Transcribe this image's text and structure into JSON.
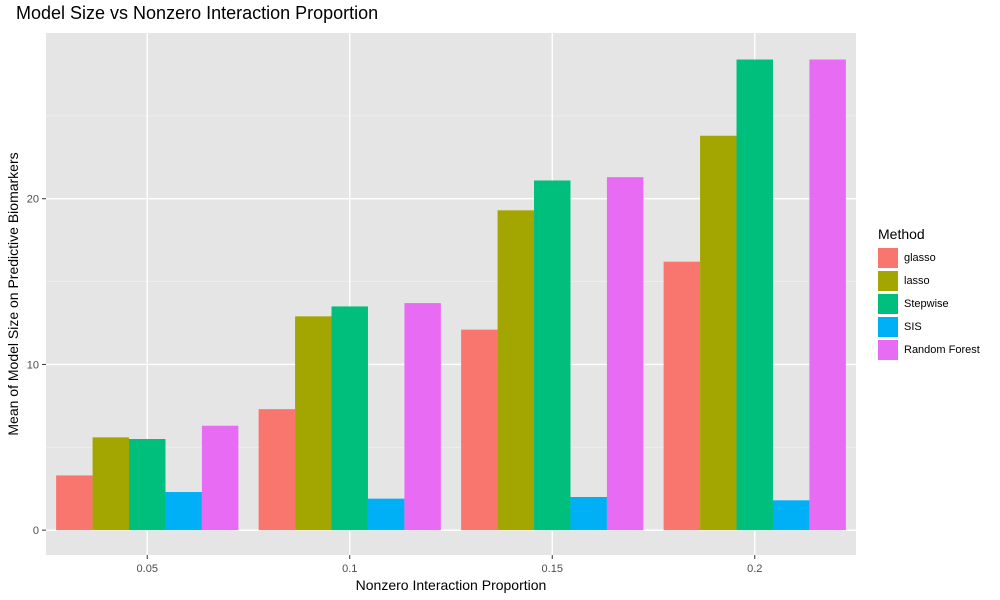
{
  "chart_data": {
    "type": "bar",
    "title": "Model Size vs Nonzero Interaction Proportion",
    "xlabel": "Nonzero Interaction Proportion",
    "ylabel": "Mean of Model Size on Predictive Biomarkers",
    "categories": [
      "0.05",
      "0.1",
      "0.15",
      "0.2"
    ],
    "ylim": [
      -1.5,
      30
    ],
    "yticks": [
      0,
      10,
      20
    ],
    "grid": true,
    "legend_title": "Method",
    "legend_position": "right",
    "series": [
      {
        "name": "glasso",
        "color": "#F8766D",
        "values": [
          3.3,
          7.3,
          12.1,
          16.2
        ]
      },
      {
        "name": "lasso",
        "color": "#A3A500",
        "values": [
          5.6,
          12.9,
          19.3,
          23.8
        ]
      },
      {
        "name": "Stepwise",
        "color": "#00BF7D",
        "values": [
          5.5,
          13.5,
          21.1,
          28.4
        ]
      },
      {
        "name": "SIS",
        "color": "#00B0F6",
        "values": [
          2.3,
          1.9,
          2.0,
          1.8
        ]
      },
      {
        "name": "Random Forest",
        "color": "#E76BF3",
        "values": [
          6.3,
          13.7,
          21.3,
          28.4
        ]
      }
    ]
  }
}
